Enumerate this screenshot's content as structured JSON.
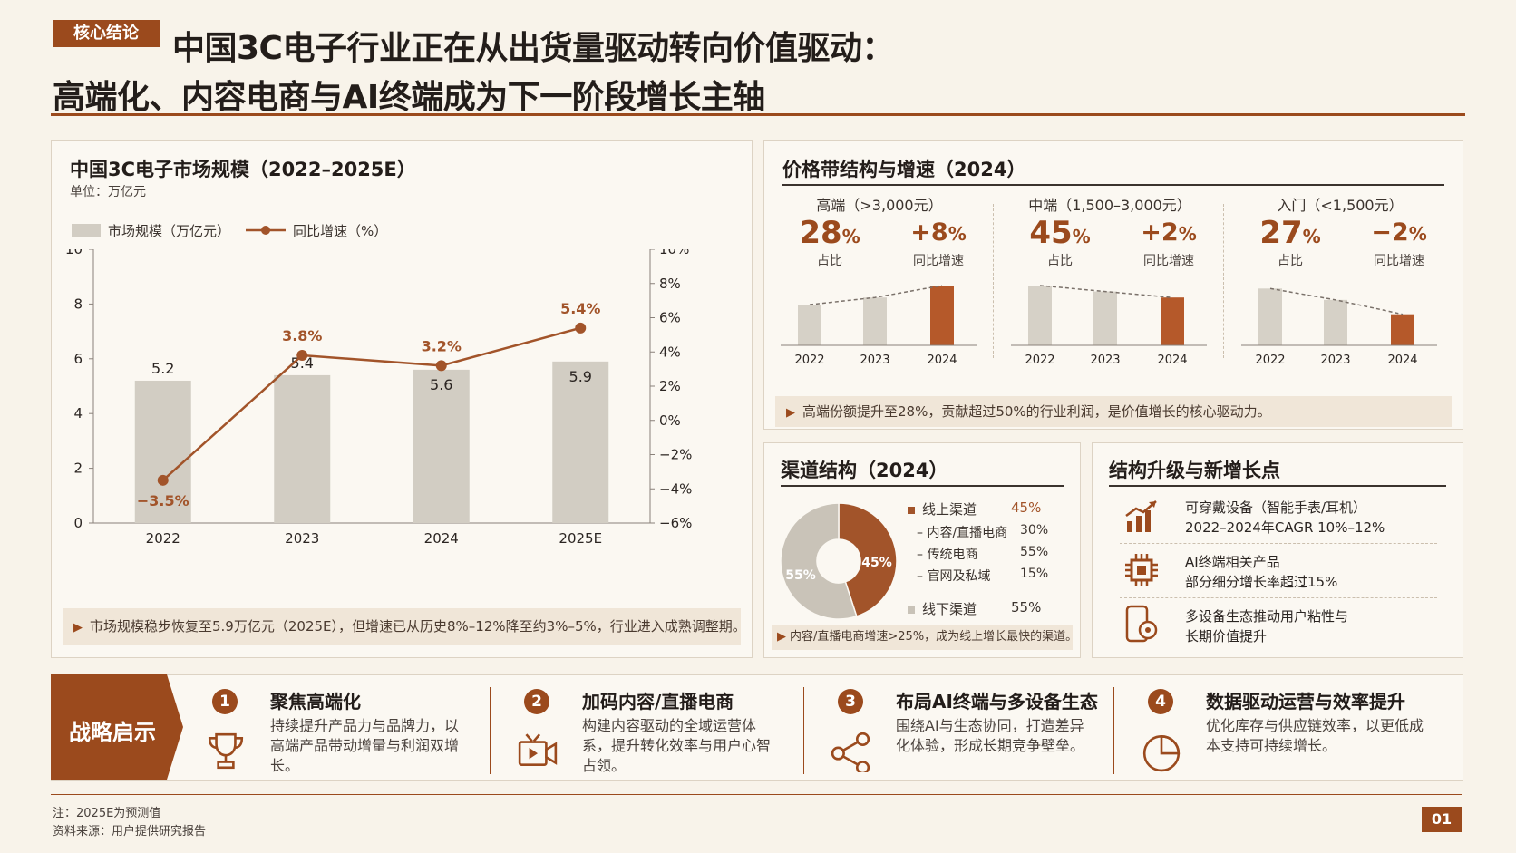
{
  "header": {
    "tag": "核心结论",
    "title_line1": "中国3C电子行业正在从出货量驱动转向价值驱动：",
    "title_line2": "高端化、内容电商与AI终端成为下一阶段增长主轴"
  },
  "market": {
    "title": "中国3C电子市场规模（2022–2025E）",
    "unit": "单位：万亿元",
    "legend_bar": "市场规模（万亿元）",
    "legend_line": "同比增速（%）",
    "note": "市场规模稳步恢复至5.9万亿元（2025E），但增速已从历史8%–12%降至约3%–5%，行业进入成熟调整期。"
  },
  "chart_data": {
    "type": "bar",
    "categories": [
      "2022",
      "2023",
      "2024",
      "2025E"
    ],
    "series": [
      {
        "name": "市场规模（万亿元）",
        "type": "bar",
        "axis": "left",
        "values": [
          5.2,
          5.4,
          5.6,
          5.9
        ],
        "labels": [
          "5.2",
          "5.4",
          "5.6",
          "5.9"
        ]
      },
      {
        "name": "同比增速（%）",
        "type": "line",
        "axis": "right",
        "values": [
          -3.5,
          3.8,
          3.2,
          5.4
        ],
        "labels": [
          "−3.5%",
          "3.8%",
          "3.2%",
          "5.4%"
        ]
      }
    ],
    "ylim": [
      0,
      10
    ],
    "y_ticks": [
      "0",
      "2",
      "4",
      "6",
      "8",
      "10"
    ],
    "y2lim": [
      -6,
      10
    ],
    "y2_ticks": [
      "−6%",
      "−4%",
      "−2%",
      "0%",
      "2%",
      "4%",
      "6%",
      "8%",
      "10%"
    ],
    "colors": {
      "bar": "#d2cdc3",
      "line": "#a2542a"
    }
  },
  "price_band": {
    "title": "价格带结构与增速（2024）",
    "share_label": "占比",
    "growth_label": "同比增速",
    "columns": [
      {
        "name": "高端（>3,000元）",
        "share": "28",
        "growth": "+8",
        "years": [
          "2022",
          "2023",
          "2024"
        ],
        "bars": [
          0.68,
          0.8,
          1.0
        ]
      },
      {
        "name": "中端（1,500–3,000元）",
        "share": "45",
        "growth": "+2",
        "years": [
          "2022",
          "2023",
          "2024"
        ],
        "bars": [
          1.0,
          0.9,
          0.8
        ]
      },
      {
        "name": "入门（<1,500元）",
        "share": "27",
        "growth": "−2",
        "years": [
          "2022",
          "2023",
          "2024"
        ],
        "bars": [
          0.95,
          0.76,
          0.52
        ]
      }
    ],
    "pct": "%",
    "note": "高端份额提升至28%，贡献超过50%的行业利润，是价值增长的核心驱动力。"
  },
  "channel": {
    "title": "渠道结构（2024）",
    "pie_online": "45%",
    "pie_offline": "55%",
    "online_label": "线上渠道",
    "online_value": "45%",
    "items": [
      {
        "label": "内容/直播电商",
        "value": "30%"
      },
      {
        "label": "传统电商",
        "value": "55%"
      },
      {
        "label": "官网及私域",
        "value": "15%"
      }
    ],
    "offline_label": "线下渠道",
    "offline_value": "55%",
    "note": "内容/直播电商增速>25%，成为线上增长最快的渠道。",
    "colors": {
      "online": "#a2542a",
      "offline": "#c9c3b8"
    }
  },
  "growth": {
    "title": "结构升级与新增长点",
    "items": [
      {
        "icon": "bar-chart-up-icon",
        "line1": "可穿戴设备（智能手表/耳机）",
        "line2": "2022–2024年CAGR 10%–12%"
      },
      {
        "icon": "chip-icon",
        "line1": "AI终端相关产品",
        "line2": "部分细分增长率超过15%"
      },
      {
        "icon": "devices-icon",
        "line1": "多设备生态推动用户粘性与",
        "line2": "长期价值提升"
      }
    ]
  },
  "strategy": {
    "label": "战略启示",
    "items": [
      {
        "num": "1",
        "icon": "trophy-icon",
        "title": "聚焦高端化",
        "desc": "持续提升产品力与品牌力，以高端产品带动增量与利润双增长。"
      },
      {
        "num": "2",
        "icon": "video-icon",
        "title": "加码内容/直播电商",
        "desc": "构建内容驱动的全域运营体系，提升转化效率与用户心智占领。"
      },
      {
        "num": "3",
        "icon": "share-icon",
        "title": "布局AI终端与多设备生态",
        "desc": "围绕AI与生态协同，打造差异化体验，形成长期竞争壁垒。"
      },
      {
        "num": "4",
        "icon": "pie-chart-icon",
        "title": "数据驱动运营与效率提升",
        "desc": "优化库存与供应链效率，以更低成本支持可持续增长。"
      }
    ]
  },
  "footer": {
    "note": "注：2025E为预测值",
    "source": "资料来源：用户提供研究报告",
    "page": "01"
  }
}
